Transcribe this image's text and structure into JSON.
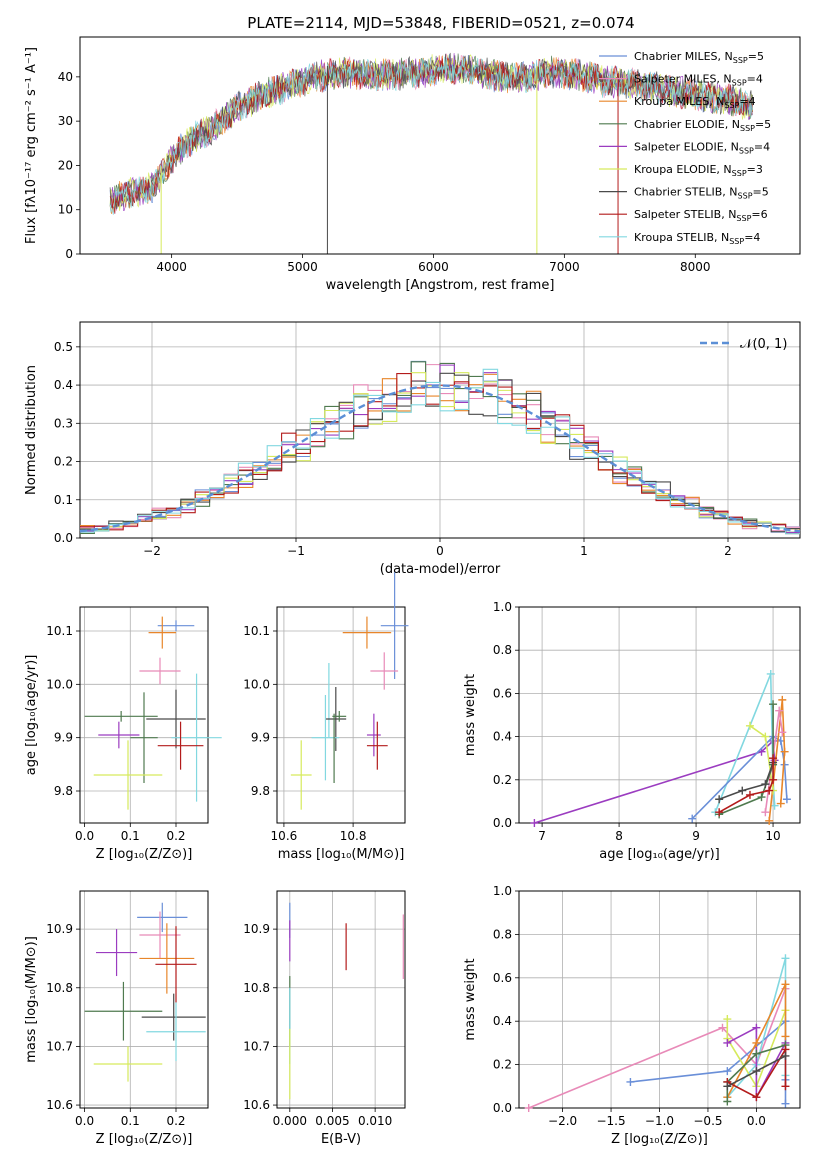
{
  "figure": {
    "title": "PLATE=2114, MJD=53848, FIBERID=0521, z=0.074"
  },
  "colors": {
    "Chabrier MILES": "#6a8fd8",
    "Salpeter MILES": "#e88ab8",
    "Kroupa MILES": "#e8862a",
    "Chabrier ELODIE": "#4f7a4f",
    "Salpeter ELODIE": "#9b3cc0",
    "Kroupa ELODIE": "#d6ea5c",
    "Chabrier STELIB": "#4a4a4a",
    "Salpeter STELIB": "#b31b1b",
    "Kroupa STELIB": "#82d8e0",
    "normal_curve": "#5b8fd6"
  },
  "chart_data": [
    {
      "id": "spectrum",
      "type": "line",
      "xlabel": "wavelength [Angstrom, rest frame]",
      "ylabel": "Flux [fλ10⁻¹⁷ erg cm⁻² s⁻¹ A⁻¹]",
      "xlim": [
        3300,
        8800
      ],
      "ylim": [
        0,
        49
      ],
      "xticks": [
        4000,
        5000,
        6000,
        7000,
        8000
      ],
      "yticks": [
        0,
        10,
        20,
        30,
        40
      ],
      "grid": false,
      "legend_position": "top-right",
      "legend": [
        {
          "label": "Chabrier MILES, N",
          "sub": "SSP",
          "suffix": "=5",
          "color_key": "Chabrier MILES"
        },
        {
          "label": "Salpeter MILES, N",
          "sub": "SSP",
          "suffix": "=4",
          "color_key": "Salpeter MILES"
        },
        {
          "label": "Kroupa MILES, N",
          "sub": "SSP",
          "suffix": "=4",
          "color_key": "Kroupa MILES"
        },
        {
          "label": "Chabrier ELODIE, N",
          "sub": "SSP",
          "suffix": "=5",
          "color_key": "Chabrier ELODIE"
        },
        {
          "label": "Salpeter ELODIE, N",
          "sub": "SSP",
          "suffix": "=4",
          "color_key": "Salpeter ELODIE"
        },
        {
          "label": "Kroupa ELODIE, N",
          "sub": "SSP",
          "suffix": "=3",
          "color_key": "Kroupa ELODIE"
        },
        {
          "label": "Chabrier STELIB, N",
          "sub": "SSP",
          "suffix": "=5",
          "color_key": "Chabrier STELIB"
        },
        {
          "label": "Salpeter STELIB, N",
          "sub": "SSP",
          "suffix": "=6",
          "color_key": "Salpeter STELIB"
        },
        {
          "label": "Kroupa STELIB, N",
          "sub": "SSP",
          "suffix": "=4",
          "color_key": "Kroupa STELIB"
        }
      ],
      "continuum_x": [
        3530,
        3700,
        3850,
        3950,
        4050,
        4150,
        4300,
        4500,
        4700,
        4900,
        5100,
        5300,
        5500,
        5700,
        5900,
        6100,
        6300,
        6500,
        6700,
        6900,
        7100,
        7300,
        7500,
        7700,
        7900,
        8100,
        8300,
        8440
      ],
      "continuum_y": [
        12,
        14,
        15,
        19,
        23,
        26,
        28,
        33,
        36,
        38,
        40,
        41,
        40.5,
        40.5,
        41,
        42,
        41.5,
        40,
        40,
        41,
        40.5,
        39,
        38.5,
        37.5,
        36.5,
        35.5,
        34.5,
        33
      ]
    },
    {
      "id": "residuals",
      "type": "histogram",
      "xlabel": "(data-model)/error",
      "ylabel": "Normed distribution",
      "xlim": [
        -2.5,
        2.5
      ],
      "ylim": [
        0,
        0.565
      ],
      "xticks": [
        -2,
        -1,
        0,
        1,
        2
      ],
      "xtick_labels": [
        "−2",
        "−1",
        "0",
        "1",
        "2"
      ],
      "yticks": [
        0.0,
        0.1,
        0.2,
        0.3,
        0.4,
        0.5
      ],
      "ytick_labels": [
        "0.0",
        "0.1",
        "0.2",
        "0.3",
        "0.4",
        "0.5"
      ],
      "grid": true,
      "legend_position": "top-right",
      "legend": [
        {
          "label": "𝒩(0, 1)",
          "color_key": "normal_curve",
          "style": "dashed"
        }
      ],
      "bin_edges": [
        -2.5,
        -2.4,
        -2.3,
        -2.2,
        -2.1,
        -2.0,
        -1.9,
        -1.8,
        -1.7,
        -1.6,
        -1.5,
        -1.4,
        -1.3,
        -1.2,
        -1.1,
        -1.0,
        -0.9,
        -0.8,
        -0.7,
        -0.6,
        -0.5,
        -0.4,
        -0.3,
        -0.2,
        -0.1,
        0.0,
        0.1,
        0.2,
        0.3,
        0.4,
        0.5,
        0.6,
        0.7,
        0.8,
        0.9,
        1.0,
        1.1,
        1.2,
        1.3,
        1.4,
        1.5,
        1.6,
        1.7,
        1.8,
        1.9,
        2.0,
        2.1,
        2.2,
        2.3,
        2.4,
        2.5
      ],
      "normal_curve": {
        "mean": 0,
        "sigma": 1
      }
    },
    {
      "id": "z-vs-age",
      "type": "scatter",
      "xlabel": "Z [log₁₀(Z/Z⊙)]",
      "ylabel": "age  [log₁₀(age/yr)]",
      "xlim": [
        -0.01,
        0.27
      ],
      "ylim": [
        9.74,
        10.145
      ],
      "xticks": [
        0.0,
        0.1,
        0.2
      ],
      "xtick_labels": [
        "0.0",
        "0.1",
        "0.2"
      ],
      "yticks": [
        9.8,
        9.9,
        10.0,
        10.1
      ],
      "ytick_labels": [
        "9.8",
        "9.9",
        "10.0",
        "10.1"
      ],
      "grid": true,
      "points": [
        {
          "color_key": "Chabrier MILES",
          "x": 0.2,
          "y": 10.11,
          "xerr": 0.04,
          "yerr": 0.01
        },
        {
          "color_key": "Kroupa MILES",
          "x": 0.17,
          "y": 10.097,
          "xerr": 0.03,
          "yerr": 0.03
        },
        {
          "color_key": "Salpeter MILES",
          "x": 0.165,
          "y": 10.025,
          "xerr": 0.045,
          "yerr": 0.025
        },
        {
          "color_key": "Chabrier ELODIE",
          "x": 0.08,
          "y": 9.94,
          "xerr": 0.08,
          "yerr": 0.01
        },
        {
          "color_key": "Chabrier STELIB",
          "x": 0.2,
          "y": 9.935,
          "xerr": 0.065,
          "yerr": 0.055
        },
        {
          "color_key": "Salpeter ELODIE",
          "x": 0.075,
          "y": 9.905,
          "xerr": 0.045,
          "yerr": 0.025
        },
        {
          "color_key": "Kroupa STELIB",
          "x": 0.245,
          "y": 9.9,
          "xerr": 0.055,
          "yerr": 0.12
        },
        {
          "color_key": "Chabrier ELODIE",
          "x": 0.13,
          "y": 9.9,
          "xerr": 0.03,
          "yerr": 0.085
        },
        {
          "color_key": "Salpeter STELIB",
          "x": 0.21,
          "y": 9.885,
          "xerr": 0.05,
          "yerr": 0.045
        },
        {
          "color_key": "Kroupa ELODIE",
          "x": 0.095,
          "y": 9.83,
          "xerr": 0.075,
          "yerr": 0.065
        }
      ]
    },
    {
      "id": "mass-vs-age",
      "type": "scatter",
      "xlabel": "mass [log₁₀(M/M⊙)]",
      "ylabel": "",
      "xlim": [
        10.58,
        10.95
      ],
      "ylim": [
        9.74,
        10.145
      ],
      "xticks": [
        10.6,
        10.8
      ],
      "xtick_labels": [
        "10.6",
        "10.8"
      ],
      "yticks": [
        9.8,
        9.9,
        10.0,
        10.1
      ],
      "ytick_labels": [
        "9.8",
        "9.9",
        "10.0",
        "10.1"
      ],
      "grid": true,
      "points": [
        {
          "color_key": "Chabrier MILES",
          "x": 10.92,
          "y": 10.11,
          "xerr": 0.04,
          "yerr": 0.1
        },
        {
          "color_key": "Kroupa MILES",
          "x": 10.84,
          "y": 10.097,
          "xerr": 0.07,
          "yerr": 0.03
        },
        {
          "color_key": "Salpeter MILES",
          "x": 10.89,
          "y": 10.025,
          "xerr": 0.04,
          "yerr": 0.035
        },
        {
          "color_key": "Kroupa STELIB",
          "x": 10.73,
          "y": 9.97,
          "xerr": 0.0,
          "yerr": 0.07
        },
        {
          "color_key": "Chabrier STELIB",
          "x": 10.75,
          "y": 9.935,
          "xerr": 0.03,
          "yerr": 0.06
        },
        {
          "color_key": "Chabrier ELODIE",
          "x": 10.76,
          "y": 9.94,
          "xerr": 0.02,
          "yerr": 0.01
        },
        {
          "color_key": "Salpeter ELODIE",
          "x": 10.86,
          "y": 9.905,
          "xerr": 0.02,
          "yerr": 0.04
        },
        {
          "color_key": "Kroupa STELIB",
          "x": 10.72,
          "y": 9.9,
          "xerr": 0.04,
          "yerr": 0.08
        },
        {
          "color_key": "Salpeter STELIB",
          "x": 10.87,
          "y": 9.885,
          "xerr": 0.03,
          "yerr": 0.045
        },
        {
          "color_key": "Chabrier ELODIE",
          "x": 10.745,
          "y": 9.88,
          "xerr": 0.0,
          "yerr": 0.065
        },
        {
          "color_key": "Kroupa ELODIE",
          "x": 10.65,
          "y": 9.83,
          "xerr": 0.03,
          "yerr": 0.065
        }
      ]
    },
    {
      "id": "age-vs-massweight",
      "type": "line",
      "xlabel": "age  [log₁₀(age/yr)]",
      "ylabel": "mass weight",
      "xlim": [
        6.7,
        10.35
      ],
      "ylim": [
        0.0,
        1.0
      ],
      "xticks": [
        7,
        8,
        9,
        10
      ],
      "xtick_labels": [
        "7",
        "8",
        "9",
        "10"
      ],
      "yticks": [
        0.0,
        0.2,
        0.4,
        0.6,
        0.8,
        1.0
      ],
      "ytick_labels": [
        "0.0",
        "0.2",
        "0.4",
        "0.6",
        "0.8",
        "1.0"
      ],
      "grid": true,
      "series": [
        {
          "color_key": "Salpeter ELODIE",
          "x": [
            6.9,
            9.85,
            10.0,
            10.02
          ],
          "y": [
            0.0,
            0.33,
            0.38,
            0.29
          ]
        },
        {
          "color_key": "Kroupa STELIB",
          "x": [
            9.25,
            9.97,
            10.0,
            10.02
          ],
          "y": [
            0.05,
            0.69,
            0.2,
            0.08
          ]
        },
        {
          "color_key": "Chabrier MILES",
          "x": [
            8.95,
            10.0,
            10.1,
            10.15,
            10.18
          ],
          "y": [
            0.02,
            0.4,
            0.38,
            0.27,
            0.11
          ]
        },
        {
          "color_key": "Kroupa MILES",
          "x": [
            9.95,
            10.12,
            10.15,
            10.1
          ],
          "y": [
            0.01,
            0.57,
            0.33,
            0.09
          ]
        },
        {
          "color_key": "Salpeter MILES",
          "x": [
            9.9,
            10.08,
            10.12
          ],
          "y": [
            0.05,
            0.52,
            0.42
          ]
        },
        {
          "color_key": "Kroupa ELODIE",
          "x": [
            9.7,
            9.9,
            10.0
          ],
          "y": [
            0.45,
            0.4,
            0.15
          ]
        },
        {
          "color_key": "Chabrier ELODIE",
          "x": [
            9.3,
            9.85,
            10.0,
            10.0
          ],
          "y": [
            0.04,
            0.12,
            0.27,
            0.55
          ]
        },
        {
          "color_key": "Chabrier STELIB",
          "x": [
            9.3,
            9.6,
            9.9,
            10.0
          ],
          "y": [
            0.11,
            0.15,
            0.18,
            0.28
          ]
        },
        {
          "color_key": "Salpeter STELIB",
          "x": [
            9.3,
            9.7,
            9.95,
            10.0,
            10.0
          ],
          "y": [
            0.05,
            0.13,
            0.15,
            0.2,
            0.3
          ]
        }
      ]
    },
    {
      "id": "z-vs-mass",
      "type": "scatter",
      "xlabel": "Z [log₁₀(Z/Z⊙)]",
      "ylabel": "mass [log₁₀(M/M⊙)]",
      "xlim": [
        -0.01,
        0.27
      ],
      "ylim": [
        10.595,
        10.965
      ],
      "xticks": [
        0.0,
        0.1,
        0.2
      ],
      "xtick_labels": [
        "0.0",
        "0.1",
        "0.2"
      ],
      "yticks": [
        10.6,
        10.7,
        10.8,
        10.9
      ],
      "ytick_labels": [
        "10.6",
        "10.7",
        "10.8",
        "10.9"
      ],
      "grid": true,
      "points": [
        {
          "color_key": "Chabrier MILES",
          "x": 0.17,
          "y": 10.92,
          "xerr": 0.055,
          "yerr": 0.025
        },
        {
          "color_key": "Salpeter MILES",
          "x": 0.165,
          "y": 10.89,
          "xerr": 0.045,
          "yerr": 0.04
        },
        {
          "color_key": "Salpeter ELODIE",
          "x": 0.07,
          "y": 10.86,
          "xerr": 0.045,
          "yerr": 0.04
        },
        {
          "color_key": "Kroupa MILES",
          "x": 0.18,
          "y": 10.85,
          "xerr": 0.06,
          "yerr": 0.06
        },
        {
          "color_key": "Salpeter STELIB",
          "x": 0.2,
          "y": 10.84,
          "xerr": 0.045,
          "yerr": 0.065
        },
        {
          "color_key": "Chabrier ELODIE",
          "x": 0.085,
          "y": 10.76,
          "xerr": 0.085,
          "yerr": 0.05
        },
        {
          "color_key": "Chabrier STELIB",
          "x": 0.195,
          "y": 10.75,
          "xerr": 0.07,
          "yerr": 0.04
        },
        {
          "color_key": "Kroupa STELIB",
          "x": 0.2,
          "y": 10.725,
          "xerr": 0.065,
          "yerr": 0.05
        },
        {
          "color_key": "Kroupa ELODIE",
          "x": 0.095,
          "y": 10.67,
          "xerr": 0.075,
          "yerr": 0.03
        }
      ]
    },
    {
      "id": "ebv-vs-mass",
      "type": "scatter",
      "xlabel": "E(B-V)",
      "ylabel": "",
      "xlim": [
        -0.0015,
        0.0135
      ],
      "ylim": [
        10.595,
        10.965
      ],
      "xticks": [
        0.0,
        0.005,
        0.01
      ],
      "xtick_labels": [
        "0.000",
        "0.005",
        "0.010"
      ],
      "yticks": [
        10.6,
        10.7,
        10.8,
        10.9
      ],
      "ytick_labels": [
        "10.6",
        "10.7",
        "10.8",
        "10.9"
      ],
      "grid": true,
      "points": [
        {
          "color_key": "Chabrier MILES",
          "x": 0.0,
          "y": 10.915,
          "xerr": 0,
          "yerr": 0.03
        },
        {
          "color_key": "Salpeter ELODIE",
          "x": 0.0,
          "y": 10.88,
          "xerr": 0,
          "yerr": 0.035
        },
        {
          "color_key": "Salpeter STELIB",
          "x": 0.0066,
          "y": 10.87,
          "xerr": 0,
          "yerr": 0.04
        },
        {
          "color_key": "Salpeter MILES",
          "x": 0.0133,
          "y": 10.87,
          "xerr": 0,
          "yerr": 0.055
        },
        {
          "color_key": "Chabrier ELODIE",
          "x": 0.0,
          "y": 10.76,
          "xerr": 0,
          "yerr": 0.06
        },
        {
          "color_key": "Kroupa STELIB",
          "x": 0.0,
          "y": 10.735,
          "xerr": 0,
          "yerr": 0.065
        },
        {
          "color_key": "Kroupa ELODIE",
          "x": 0.0,
          "y": 10.67,
          "xerr": 0,
          "yerr": 0.06
        }
      ]
    },
    {
      "id": "z-vs-massweight",
      "type": "line",
      "xlabel": "Z [log₁₀(Z/Z⊙)]",
      "ylabel": "mass weight",
      "xlim": [
        -2.45,
        0.45
      ],
      "ylim": [
        0.0,
        1.0
      ],
      "xticks": [
        -2.0,
        -1.5,
        -1.0,
        -0.5,
        0.0
      ],
      "xtick_labels": [
        "−2.0",
        "−1.5",
        "−1.0",
        "−0.5",
        "0.0"
      ],
      "yticks": [
        0.0,
        0.2,
        0.4,
        0.6,
        0.8,
        1.0
      ],
      "ytick_labels": [
        "0.0",
        "0.2",
        "0.4",
        "0.6",
        "0.8",
        "1.0"
      ],
      "grid": true,
      "series": [
        {
          "color_key": "Salpeter MILES",
          "x": [
            -2.35,
            -0.35,
            0.0,
            0.3
          ],
          "y": [
            0.0,
            0.37,
            0.2,
            0.55
          ]
        },
        {
          "color_key": "Chabrier MILES",
          "x": [
            -1.3,
            -0.3,
            0.3,
            0.3,
            0.3
          ],
          "y": [
            0.12,
            0.17,
            0.4,
            0.13,
            0.02
          ]
        },
        {
          "color_key": "Kroupa STELIB",
          "x": [
            -0.3,
            0.0,
            0.3,
            0.3
          ],
          "y": [
            0.05,
            0.2,
            0.69,
            0.15
          ]
        },
        {
          "color_key": "Kroupa ELODIE",
          "x": [
            -0.3,
            -0.3,
            0.0,
            0.3
          ],
          "y": [
            0.41,
            0.32,
            0.1,
            0.45
          ]
        },
        {
          "color_key": "Salpeter ELODIE",
          "x": [
            -0.3,
            0.0,
            0.0,
            0.3
          ],
          "y": [
            0.3,
            0.37,
            0.05,
            0.3
          ]
        },
        {
          "color_key": "Kroupa MILES",
          "x": [
            -0.3,
            0.0,
            0.3,
            0.3
          ],
          "y": [
            0.05,
            0.3,
            0.57,
            0.33
          ]
        },
        {
          "color_key": "Chabrier ELODIE",
          "x": [
            -0.3,
            -0.3,
            0.0,
            0.3
          ],
          "y": [
            0.03,
            0.12,
            0.25,
            0.29
          ]
        },
        {
          "color_key": "Salpeter STELIB",
          "x": [
            -0.3,
            0.0,
            0.3,
            0.3
          ],
          "y": [
            0.12,
            0.05,
            0.27,
            0.1
          ]
        },
        {
          "color_key": "Chabrier STELIB",
          "x": [
            -0.3,
            0.0,
            0.3
          ],
          "y": [
            0.1,
            0.17,
            0.24
          ]
        }
      ]
    }
  ]
}
